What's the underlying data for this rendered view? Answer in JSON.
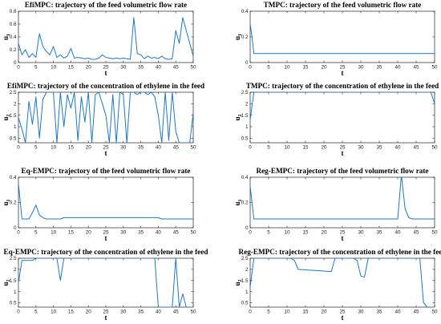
{
  "chart_data": [
    {
      "type": "line",
      "title": "EfiMPC: trajectory of the feed volumetric flow rate",
      "xlabel": "t",
      "ylabel": "u",
      "ylabel_sub": "1",
      "xlim": [
        0,
        50
      ],
      "ylim": [
        0,
        0.8
      ],
      "xticks": [
        0,
        5,
        10,
        15,
        20,
        25,
        30,
        35,
        40,
        45,
        50
      ],
      "yticks": [
        0,
        0.2,
        0.4,
        0.6,
        0.8
      ],
      "series": [
        {
          "color": "#1f77c4",
          "x": [
            0,
            1,
            2,
            3,
            4,
            5,
            6,
            7,
            8,
            9,
            10,
            11,
            12,
            13,
            14,
            15,
            16,
            17,
            18,
            19,
            20,
            21,
            22,
            23,
            24,
            25,
            26,
            27,
            28,
            29,
            30,
            31,
            32,
            33,
            34,
            35,
            36,
            37,
            38,
            39,
            40,
            41,
            42,
            43,
            44,
            45,
            46,
            47,
            48,
            49,
            50
          ],
          "y": [
            0.3,
            0.12,
            0.2,
            0.08,
            0.14,
            0.08,
            0.45,
            0.25,
            0.17,
            0.12,
            0.25,
            0.08,
            0.12,
            0.07,
            0.1,
            0.22,
            0.07,
            0.08,
            0.07,
            0.06,
            0.07,
            0.05,
            0.05,
            0.07,
            0.12,
            0.08,
            0.07,
            0.06,
            0.07,
            0.06,
            0.07,
            0.06,
            0.05,
            0.7,
            0.14,
            0.12,
            0.06,
            0.1,
            0.07,
            0.08,
            0.06,
            0.1,
            0.06,
            0.05,
            0.06,
            0.5,
            0.3,
            0.7,
            0.5,
            0.3,
            0.1
          ]
        }
      ]
    },
    {
      "type": "line",
      "title": "TMPC: trajectory of the feed volumetric flow rate",
      "xlabel": "t",
      "ylabel": "u",
      "ylabel_sub": "1",
      "xlim": [
        0,
        50
      ],
      "ylim": [
        0,
        0.4
      ],
      "xticks": [
        0,
        5,
        10,
        15,
        20,
        25,
        30,
        35,
        40,
        45,
        50
      ],
      "yticks": [
        0,
        0.2,
        0.4
      ],
      "series": [
        {
          "color": "#1f77c4",
          "x": [
            0,
            0.5,
            1,
            50
          ],
          "y": [
            0.3,
            0.2,
            0.07,
            0.07
          ]
        }
      ]
    },
    {
      "type": "line",
      "title": "EfiMPC: trajectory of the concentration of ethylene in the feed",
      "xlabel": "t",
      "ylabel": "u",
      "ylabel_sub": "2",
      "xlim": [
        0,
        50
      ],
      "ylim": [
        0.3,
        2.5
      ],
      "xticks": [
        0,
        5,
        10,
        15,
        20,
        25,
        30,
        35,
        40,
        45,
        50
      ],
      "yticks": [
        0.5,
        1,
        1.5,
        2,
        2.5
      ],
      "series": [
        {
          "color": "#1f77c4",
          "x": [
            0,
            1,
            2,
            3,
            4,
            5,
            6,
            7,
            8,
            9,
            10,
            11,
            12,
            13,
            14,
            15,
            16,
            17,
            18,
            19,
            20,
            21,
            22,
            23,
            24,
            25,
            26,
            27,
            28,
            29,
            30,
            31,
            32,
            33,
            34,
            35,
            36,
            37,
            38,
            39,
            40,
            41,
            42,
            43,
            44,
            45,
            46,
            47,
            48,
            49,
            50
          ],
          "y": [
            1.4,
            0.9,
            0.3,
            2.1,
            1.1,
            2.3,
            0.5,
            2.2,
            2.5,
            2.5,
            2.5,
            0.3,
            2.5,
            1.0,
            2.4,
            1.8,
            2.5,
            0.4,
            2.3,
            1.2,
            2.5,
            0.3,
            2.4,
            2.5,
            2.0,
            1.5,
            0.3,
            2.4,
            0.3,
            2.5,
            2.4,
            0.3,
            2.5,
            2.5,
            2.4,
            2.5,
            2.5,
            2.4,
            2.5,
            2.3,
            1.5,
            0.3,
            2.5,
            0.4,
            2.5,
            0.8,
            0.3,
            0.3,
            0.3,
            0.3,
            1.6
          ]
        }
      ]
    },
    {
      "type": "line",
      "title": "TMPC: trajectory of the concentration of ethylene in the feed",
      "xlabel": "t",
      "ylabel": "u",
      "ylabel_sub": "2",
      "xlim": [
        0,
        50
      ],
      "ylim": [
        0.3,
        2.5
      ],
      "xticks": [
        0,
        5,
        10,
        15,
        20,
        25,
        30,
        35,
        40,
        45,
        50
      ],
      "yticks": [
        0.5,
        1,
        1.5,
        2,
        2.5
      ],
      "series": [
        {
          "color": "#1f77c4",
          "x": [
            0,
            1,
            49,
            50
          ],
          "y": [
            1.3,
            2.5,
            2.5,
            2.0
          ]
        }
      ]
    },
    {
      "type": "line",
      "title": "Eq-EMPC: trajectory of the feed volumetric flow rate",
      "xlabel": "t",
      "ylabel": "u",
      "ylabel_sub": "1",
      "xlim": [
        0,
        50
      ],
      "ylim": [
        0,
        0.4
      ],
      "xticks": [
        0,
        5,
        10,
        15,
        20,
        25,
        30,
        35,
        40,
        45,
        50
      ],
      "yticks": [
        0,
        0.2,
        0.4
      ],
      "series": [
        {
          "color": "#1f77c4",
          "x": [
            0,
            1,
            3,
            4,
            5,
            6,
            7,
            8,
            9,
            10,
            12,
            13,
            40,
            41,
            50
          ],
          "y": [
            0.35,
            0.07,
            0.07,
            0.12,
            0.18,
            0.1,
            0.08,
            0.07,
            0.07,
            0.07,
            0.07,
            0.08,
            0.08,
            0.07,
            0.07
          ]
        }
      ]
    },
    {
      "type": "line",
      "title": "Reg-EMPC: trajectory of the feed volumetric flow rate",
      "xlabel": "t",
      "ylabel": "u",
      "ylabel_sub": "1",
      "xlim": [
        0,
        50
      ],
      "ylim": [
        0,
        0.4
      ],
      "xticks": [
        0,
        5,
        10,
        15,
        20,
        25,
        30,
        35,
        40,
        45,
        50
      ],
      "yticks": [
        0,
        0.2,
        0.4
      ],
      "series": [
        {
          "color": "#1f77c4",
          "x": [
            0,
            1,
            40,
            41,
            42,
            43,
            44,
            50
          ],
          "y": [
            0.33,
            0.07,
            0.07,
            0.42,
            0.15,
            0.08,
            0.07,
            0.07
          ]
        }
      ]
    },
    {
      "type": "line",
      "title": "Eq-EMPC: trajectory of the concentration of ethylene in the feed",
      "xlabel": "t",
      "ylabel": "u",
      "ylabel_sub": "2",
      "xlim": [
        0,
        50
      ],
      "ylim": [
        0.3,
        2.5
      ],
      "xticks": [
        0,
        5,
        10,
        15,
        20,
        25,
        30,
        35,
        40,
        45,
        50
      ],
      "yticks": [
        0.5,
        1,
        1.5,
        2,
        2.5
      ],
      "series": [
        {
          "color": "#1f77c4",
          "x": [
            0,
            1,
            2,
            4,
            5,
            11,
            12,
            13,
            39,
            40,
            44,
            45,
            46,
            47,
            48,
            50
          ],
          "y": [
            1.4,
            2.4,
            2.4,
            2.4,
            2.5,
            2.5,
            1.5,
            2.5,
            2.5,
            0.3,
            0.3,
            2.5,
            0.3,
            0.9,
            0.3,
            0.3
          ]
        }
      ]
    },
    {
      "type": "line",
      "title": "Reg-EMPC: trajectory of the concentration of ethylene in the feed",
      "xlabel": "t",
      "ylabel": "u",
      "ylabel_sub": "2",
      "xlim": [
        0,
        50
      ],
      "ylim": [
        0.3,
        2.5
      ],
      "xticks": [
        0,
        5,
        10,
        15,
        20,
        25,
        30,
        35,
        40,
        45,
        50
      ],
      "yticks": [
        0.5,
        1,
        1.5,
        2,
        2.5
      ],
      "series": [
        {
          "color": "#1f77c4",
          "x": [
            0,
            1,
            11,
            12,
            13,
            22,
            23,
            28,
            29,
            30,
            31,
            32,
            46,
            47,
            48,
            50
          ],
          "y": [
            1.2,
            2.5,
            2.5,
            2.4,
            2.0,
            1.9,
            2.5,
            2.5,
            2.4,
            1.7,
            1.65,
            2.5,
            2.5,
            0.5,
            0.3,
            0.3
          ]
        }
      ]
    }
  ]
}
